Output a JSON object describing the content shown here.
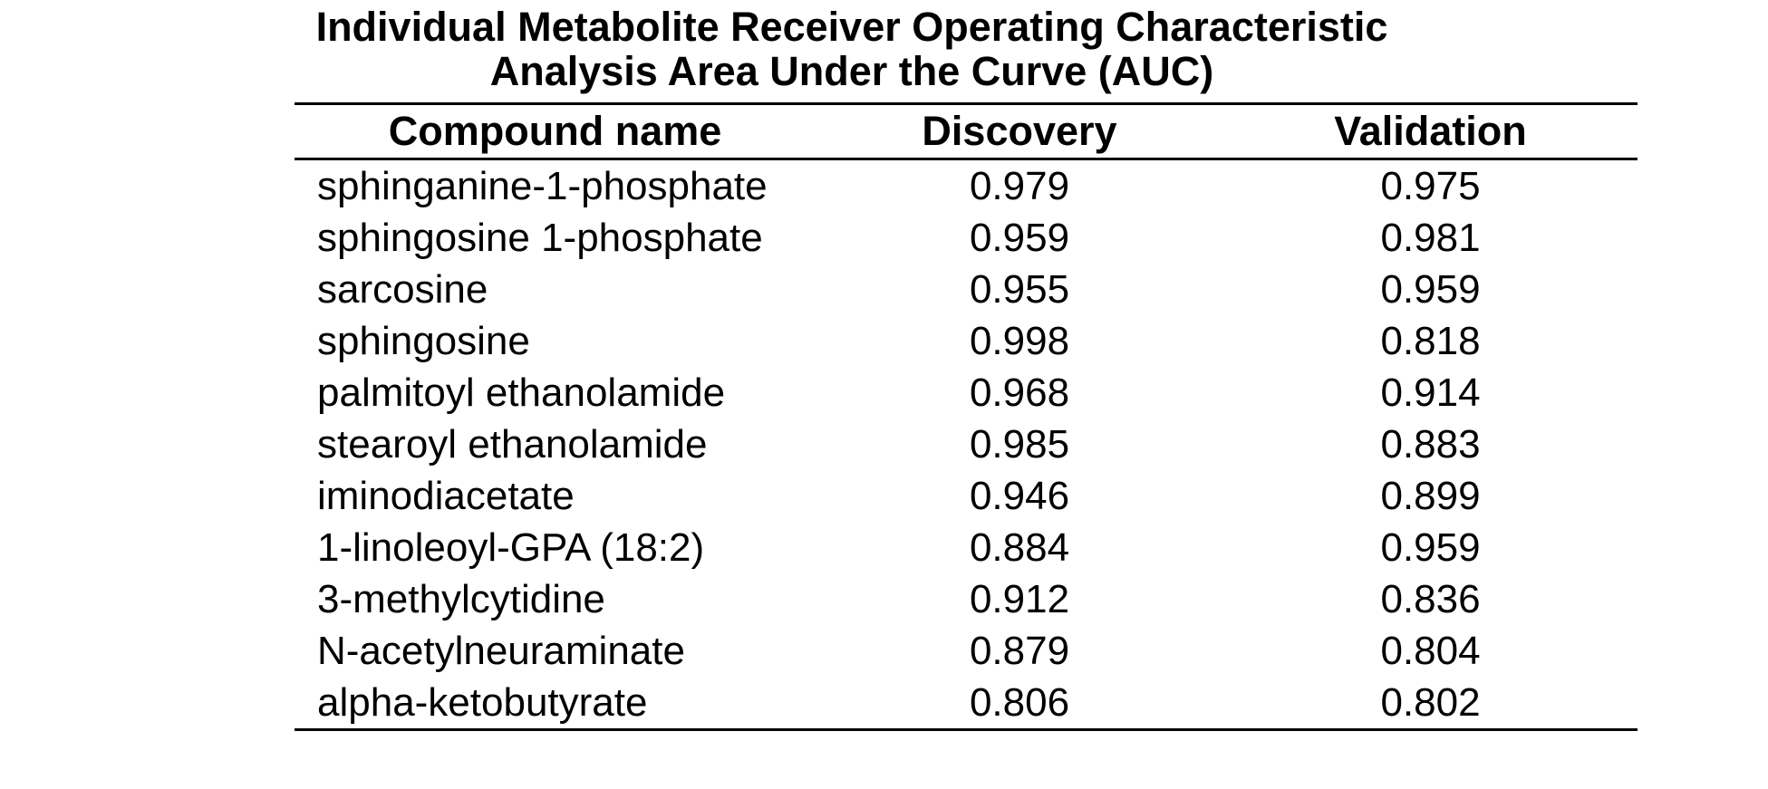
{
  "page": {
    "background_color": "#ffffff",
    "text_color": "#000000"
  },
  "table": {
    "title_lines": [
      "Individual Metabolite Receiver Operating Characteristic",
      "Analysis Area Under the Curve (AUC)"
    ],
    "columns": [
      "Compound name",
      "Discovery",
      "Validation"
    ],
    "rows": [
      {
        "compound": "sphinganine-1-phosphate",
        "discovery": "0.979",
        "validation": "0.975"
      },
      {
        "compound": "sphingosine 1-phosphate",
        "discovery": "0.959",
        "validation": "0.981"
      },
      {
        "compound": "sarcosine",
        "discovery": "0.955",
        "validation": "0.959"
      },
      {
        "compound": "sphingosine",
        "discovery": "0.998",
        "validation": "0.818"
      },
      {
        "compound": "palmitoyl ethanolamide",
        "discovery": "0.968",
        "validation": "0.914"
      },
      {
        "compound": "stearoyl ethanolamide",
        "discovery": "0.985",
        "validation": "0.883"
      },
      {
        "compound": "iminodiacetate",
        "discovery": "0.946",
        "validation": "0.899"
      },
      {
        "compound": "1-linoleoyl-GPA (18:2)",
        "discovery": "0.884",
        "validation": "0.959"
      },
      {
        "compound": "3-methylcytidine",
        "discovery": "0.912",
        "validation": "0.836"
      },
      {
        "compound": "N-acetylneuraminate",
        "discovery": "0.879",
        "validation": "0.804"
      },
      {
        "compound": "alpha-ketobutyrate",
        "discovery": "0.806",
        "validation": "0.802"
      }
    ]
  },
  "chart_data": {
    "type": "table",
    "title": "Individual Metabolite Receiver Operating Characteristic Analysis Area Under the Curve (AUC)",
    "columns": [
      "Compound name",
      "Discovery",
      "Validation"
    ],
    "rows": [
      [
        "sphinganine-1-phosphate",
        0.979,
        0.975
      ],
      [
        "sphingosine 1-phosphate",
        0.959,
        0.981
      ],
      [
        "sarcosine",
        0.955,
        0.959
      ],
      [
        "sphingosine",
        0.998,
        0.818
      ],
      [
        "palmitoyl ethanolamide",
        0.968,
        0.914
      ],
      [
        "stearoyl ethanolamide",
        0.985,
        0.883
      ],
      [
        "iminodiacetate",
        0.946,
        0.899
      ],
      [
        "1-linoleoyl-GPA (18:2)",
        0.884,
        0.959
      ],
      [
        "3-methylcytidine",
        0.912,
        0.836
      ],
      [
        "N-acetylneuraminate",
        0.879,
        0.804
      ],
      [
        "alpha-ketobutyrate",
        0.806,
        0.802
      ]
    ]
  }
}
